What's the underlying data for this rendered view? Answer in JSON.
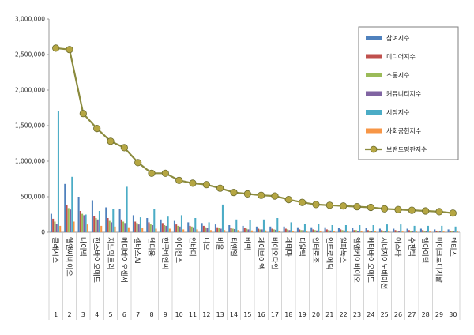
{
  "chart_data": {
    "type": "bar",
    "ylim": [
      0,
      3000000
    ],
    "yticks": [
      "3,000,000",
      "2,500,000",
      "2,000,000",
      "1,500,000",
      "1,000,000",
      "500,000",
      "0"
    ],
    "grid": false,
    "legend_position": "top-right",
    "categories": [
      "클래시스",
      "엘앤씨바이오",
      "나이벡",
      "한스바이오메드",
      "지노믹트리",
      "메디바이오센서",
      "셀바스AI",
      "덴티움",
      "한국비엔씨",
      "아이센스",
      "인바디",
      "디오",
      "비올",
      "티앤엘",
      "바텍",
      "제이브이엠",
      "바이오다인",
      "제테마",
      "디알텍",
      "인터로조",
      "인트로메딕",
      "알파녹스",
      "엘앤케이바이오",
      "메타바이오메드",
      "시너지이노베이션",
      "아스타",
      "수젠텍",
      "엠아이텍",
      "마이크로디지탈",
      "덴티스"
    ],
    "index_labels": [
      "1",
      "2",
      "3",
      "4",
      "5",
      "6",
      "7",
      "8",
      "9",
      "10",
      "11",
      "12",
      "13",
      "14",
      "15",
      "16",
      "17",
      "18",
      "19",
      "20",
      "21",
      "22",
      "23",
      "24",
      "25",
      "26",
      "27",
      "28",
      "29",
      "30"
    ],
    "series": [
      {
        "name": "참여지수",
        "type": "bar",
        "color": "#4f81bd",
        "values": [
          260000,
          680000,
          500000,
          450000,
          350000,
          330000,
          240000,
          200000,
          180000,
          160000,
          140000,
          130000,
          110000,
          100000,
          90000,
          80000,
          80000,
          80000,
          70000,
          70000,
          70000,
          60000,
          60000,
          60000,
          50000,
          50000,
          50000,
          50000,
          40000,
          40000
        ]
      },
      {
        "name": "미디어지수",
        "type": "bar",
        "color": "#c0504d",
        "values": [
          190000,
          380000,
          300000,
          230000,
          200000,
          180000,
          150000,
          140000,
          130000,
          110000,
          90000,
          90000,
          70000,
          60000,
          60000,
          50000,
          50000,
          50000,
          40000,
          40000,
          40000,
          40000,
          30000,
          30000,
          30000,
          30000,
          30000,
          30000,
          20000,
          20000
        ]
      },
      {
        "name": "소통지수",
        "type": "bar",
        "color": "#9bbb59",
        "values": [
          150000,
          340000,
          260000,
          200000,
          160000,
          150000,
          130000,
          110000,
          100000,
          90000,
          80000,
          70000,
          60000,
          50000,
          50000,
          40000,
          40000,
          40000,
          30000,
          30000,
          30000,
          30000,
          30000,
          20000,
          20000,
          20000,
          20000,
          20000,
          20000,
          20000
        ]
      },
      {
        "name": "커뮤니티지수",
        "type": "bar",
        "color": "#8064a2",
        "values": [
          120000,
          320000,
          240000,
          180000,
          140000,
          130000,
          110000,
          100000,
          90000,
          80000,
          70000,
          60000,
          50000,
          45000,
          40000,
          40000,
          35000,
          30000,
          30000,
          25000,
          25000,
          25000,
          20000,
          20000,
          20000,
          20000,
          15000,
          15000,
          15000,
          15000
        ]
      },
      {
        "name": "시장지수",
        "type": "bar",
        "color": "#4bacc6",
        "values": [
          1700000,
          780000,
          250000,
          300000,
          330000,
          640000,
          210000,
          330000,
          220000,
          240000,
          200000,
          140000,
          390000,
          180000,
          170000,
          180000,
          200000,
          140000,
          120000,
          120000,
          100000,
          100000,
          100000,
          100000,
          110000,
          110000,
          90000,
          90000,
          90000,
          80000
        ]
      },
      {
        "name": "사회공헌지수",
        "type": "bar",
        "color": "#f79646",
        "values": [
          90000,
          150000,
          110000,
          90000,
          80000,
          70000,
          60000,
          50000,
          50000,
          40000,
          40000,
          30000,
          30000,
          30000,
          25000,
          25000,
          20000,
          20000,
          20000,
          20000,
          15000,
          15000,
          15000,
          15000,
          15000,
          10000,
          10000,
          10000,
          10000,
          10000
        ]
      },
      {
        "name": "브랜드평판지수",
        "type": "line",
        "color": "#8b8b3e",
        "marker_color": "#b5a642",
        "values": [
          2590000,
          2570000,
          1670000,
          1460000,
          1280000,
          1190000,
          980000,
          830000,
          830000,
          730000,
          690000,
          670000,
          620000,
          560000,
          540000,
          520000,
          510000,
          460000,
          420000,
          390000,
          380000,
          370000,
          360000,
          350000,
          330000,
          320000,
          310000,
          300000,
          290000,
          270000
        ]
      }
    ]
  }
}
